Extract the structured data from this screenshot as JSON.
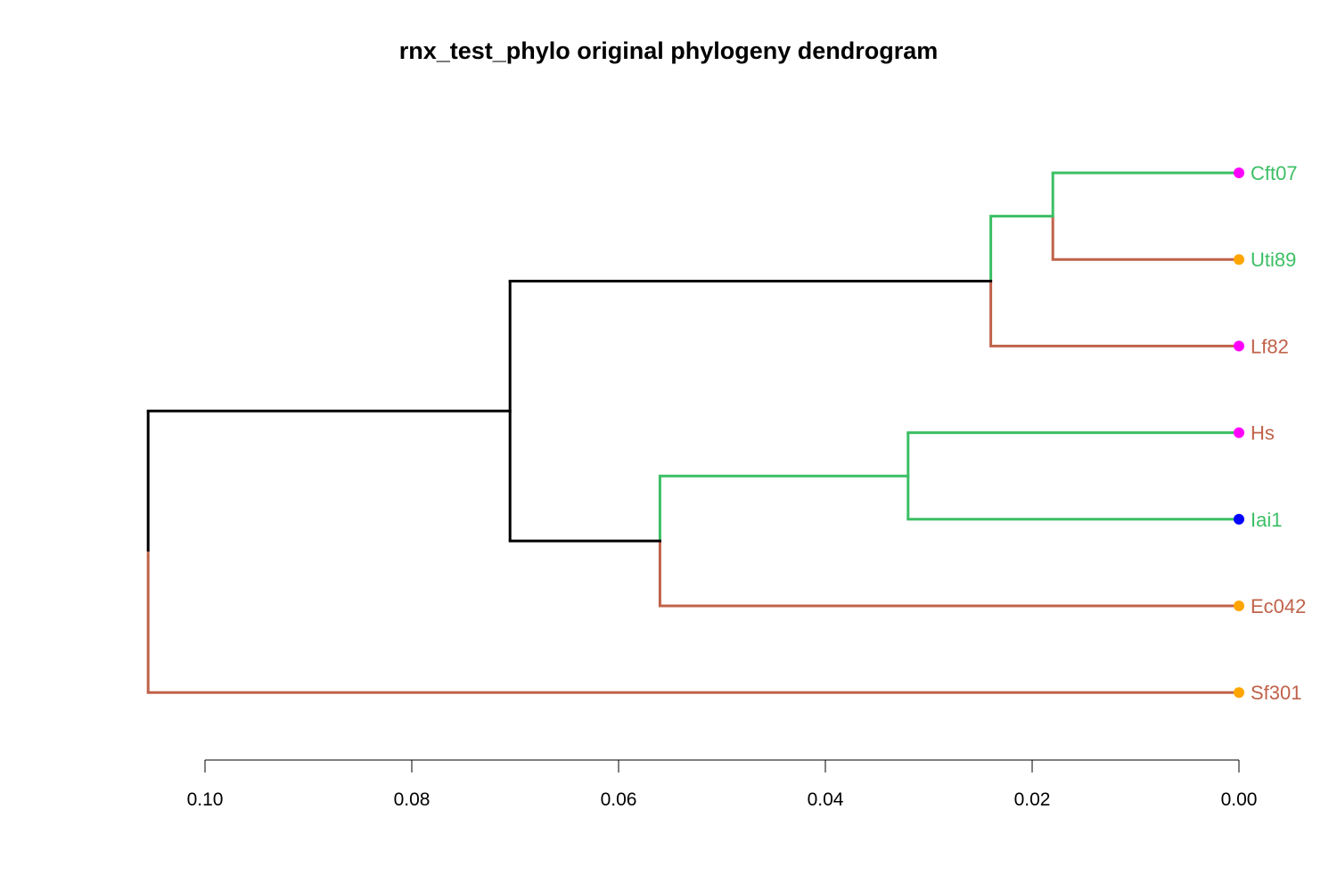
{
  "title": "rnx_test_phylo original phylogeny dendrogram",
  "colors": {
    "internal": "#000000",
    "green": "#3cbf65",
    "brown": "#c0624a",
    "axis": "#000000"
  },
  "chart_data": {
    "type": "dendrogram",
    "orientation": "leaves-right",
    "axis": {
      "ticks": [
        0.1,
        0.08,
        0.06,
        0.04,
        0.02,
        0.0
      ],
      "tick_labels": [
        "0.10",
        "0.08",
        "0.06",
        "0.04",
        "0.02",
        "0.00"
      ]
    },
    "leaves": [
      {
        "label": "Cft07",
        "label_color": "#3cbf65",
        "point_color": "#ff00ff"
      },
      {
        "label": "Uti89",
        "label_color": "#3cbf65",
        "point_color": "#ffa500"
      },
      {
        "label": "Lf82",
        "label_color": "#c0624a",
        "point_color": "#ff00ff"
      },
      {
        "label": "Hs",
        "label_color": "#c0624a",
        "point_color": "#ff00ff"
      },
      {
        "label": "Iai1",
        "label_color": "#3cbf65",
        "point_color": "#0000ff"
      },
      {
        "label": "Ec042",
        "label_color": "#c0624a",
        "point_color": "#ffa500"
      },
      {
        "label": "Sf301",
        "label_color": "#c0624a",
        "point_color": "#ffa500"
      }
    ],
    "merges": [
      {
        "id": "m1",
        "height": 0.018,
        "children": [
          "Cft07",
          "Uti89"
        ],
        "branch_colors": [
          "#3cbf65",
          "#c0624a"
        ]
      },
      {
        "id": "m2",
        "height": 0.024,
        "children": [
          "m1",
          "Lf82"
        ],
        "branch_colors": [
          "#3cbf65",
          "#c0624a"
        ]
      },
      {
        "id": "m3",
        "height": 0.032,
        "children": [
          "Hs",
          "Iai1"
        ],
        "branch_colors": [
          "#3cbf65",
          "#3cbf65"
        ]
      },
      {
        "id": "m4",
        "height": 0.056,
        "children": [
          "m3",
          "Ec042"
        ],
        "branch_colors": [
          "#3cbf65",
          "#c0624a"
        ]
      },
      {
        "id": "m5",
        "height": 0.0705,
        "children": [
          "m2",
          "m4"
        ],
        "branch_colors": [
          "#000000",
          "#000000"
        ]
      },
      {
        "id": "m6",
        "height": 0.1055,
        "children": [
          "m5",
          "Sf301"
        ],
        "branch_colors": [
          "#000000",
          "#c0624a"
        ]
      }
    ]
  }
}
